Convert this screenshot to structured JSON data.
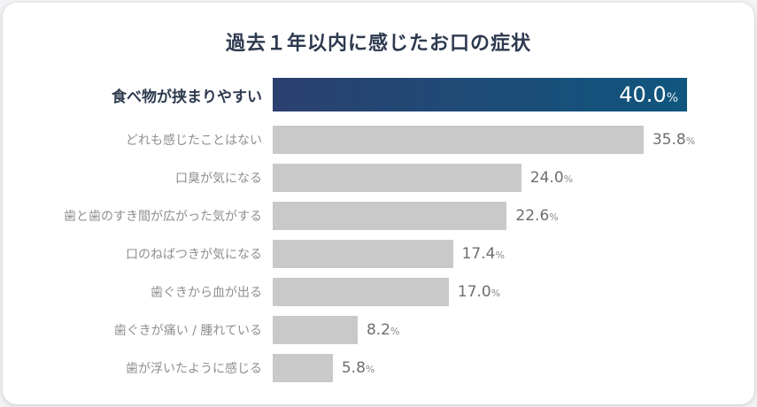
{
  "title": "過去１年以内に感じたお口の症状",
  "chart_data": {
    "type": "bar",
    "orientation": "horizontal",
    "title": "過去１年以内に感じたお口の症状",
    "unit": "%",
    "max_value": 40.0,
    "categories": [
      "食べ物が挟まりやすい",
      "どれも感じたことはない",
      "口臭が気になる",
      "歯と歯のすき間が広がった気がする",
      "口のねばつきが気になる",
      "歯ぐきから血が出る",
      "歯ぐきが痛い / 腫れている",
      "歯が浮いたように感じる"
    ],
    "values": [
      40.0,
      35.8,
      24.0,
      22.6,
      17.4,
      17.0,
      8.2,
      5.8
    ],
    "value_labels": [
      "40.0",
      "35.8",
      "24.0",
      "22.6",
      "17.4",
      "17.0",
      "8.2",
      "5.8"
    ],
    "highlight_index": 0,
    "legend": "none",
    "grid": false,
    "colors": {
      "title_text": "#2d3a4f",
      "highlight_label_text": "#2d3a4f",
      "highlight_bar_gradient_left": "#2c4070",
      "highlight_bar_gradient_right": "#0f567e",
      "highlight_value_text": "#ffffff",
      "bar_fill": "#c9c9c9",
      "label_text": "#8f8f8f",
      "value_text": "#6e6e6e",
      "card_background": "#ffffff"
    }
  }
}
